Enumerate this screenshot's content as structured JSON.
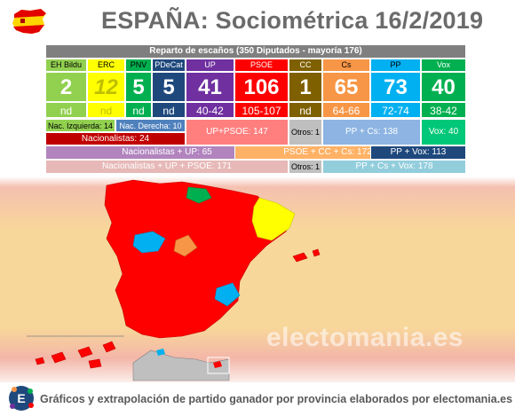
{
  "title": "ESPAÑA: Sociométrica 16/2/2019",
  "chart_data": {
    "type": "table",
    "caption": "Reparto de escaños (350 Diputados - mayoría 176)",
    "parties": [
      {
        "name": "EH Bildu",
        "seats": "2",
        "range": "nd",
        "color": "#92d050"
      },
      {
        "name": "ERC",
        "seats": "12",
        "range": "nd",
        "color": "#ffff00"
      },
      {
        "name": "PNV",
        "seats": "5",
        "range": "nd",
        "color": "#00b050"
      },
      {
        "name": "PDeCat",
        "seats": "5",
        "range": "nd",
        "color": "#002060"
      },
      {
        "name": "UP",
        "seats": "41",
        "range": "40-42",
        "color": "#7030a0"
      },
      {
        "name": "PSOE",
        "seats": "106",
        "range": "105-107",
        "color": "#ff0000"
      },
      {
        "name": "CC",
        "seats": "1",
        "range": "nd",
        "color": "#7f6000"
      },
      {
        "name": "Cs",
        "seats": "65",
        "range": "64-66",
        "color": "#f79646"
      },
      {
        "name": "PP",
        "seats": "73",
        "range": "72-74",
        "color": "#00b0f0"
      },
      {
        "name": "Vox",
        "seats": "40",
        "range": "38-42",
        "color": "#00b050"
      }
    ],
    "blocks": {
      "nac_izq": "Nac. Izquierda: 14",
      "nac_der": "Nac. Derecha: 10",
      "nacionalistas": "Nacionalistas: 24",
      "up_psoe": "UP+PSOE: 147",
      "otros": "Otros: 1",
      "pp_cs": "PP + Cs: 138",
      "vox": "Vox: 40",
      "nac_up": "Nacionalistas + UP: 65",
      "psoe_cc_cs": "PSOE + CC + Cs: 172",
      "pp_vox": "PP + Vox: 113",
      "nac_up_psoe": "Nacionalistas + UP + PSOE: 171",
      "otros2": "Otros: 1",
      "pp_cs_vox": "PP + Cs + Vox: 178"
    }
  },
  "map": {
    "watermark": "electomania.es",
    "winner_colors": {
      "psoe": "#ff0000",
      "pp": "#00b0f0",
      "cs": "#f79646",
      "erc": "#ffff00",
      "pnv": "#00b050"
    }
  },
  "footer": {
    "logo_letter": "E",
    "text": "Gráficos y extrapolación de partido ganador por provincia elaborados por electomania.es"
  }
}
